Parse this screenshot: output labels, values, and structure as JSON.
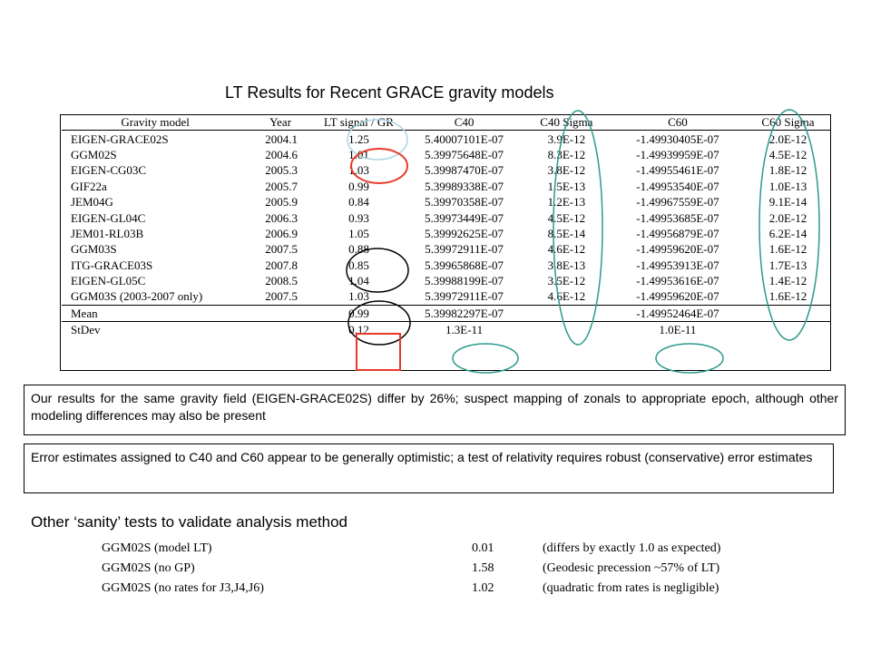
{
  "title": "LT Results for Recent GRACE gravity models",
  "table": {
    "headers": [
      "Gravity model",
      "Year",
      "LT signal / GR",
      "C40",
      "C40 Sigma",
      "C60",
      "C60 Sigma"
    ],
    "rows": [
      [
        "EIGEN-GRACE02S",
        "2004.1",
        "1.25",
        "5.40007101E-07",
        "3.9E-12",
        "-1.49930405E-07",
        "2.0E-12"
      ],
      [
        "GGM02S",
        "2004.6",
        "1.01",
        "5.39975648E-07",
        "8.3E-12",
        "-1.49939959E-07",
        "4.5E-12"
      ],
      [
        "EIGEN-CG03C",
        "2005.3",
        "1.03",
        "5.39987470E-07",
        "3.8E-12",
        "-1.49955461E-07",
        "1.8E-12"
      ],
      [
        "GIF22a",
        "2005.7",
        "0.99",
        "5.39989338E-07",
        "1.5E-13",
        "-1.49953540E-07",
        "1.0E-13"
      ],
      [
        "JEM04G",
        "2005.9",
        "0.84",
        "5.39970358E-07",
        "1.2E-13",
        "-1.49967559E-07",
        "9.1E-14"
      ],
      [
        "EIGEN-GL04C",
        "2006.3",
        "0.93",
        "5.39973449E-07",
        "4.5E-12",
        "-1.49953685E-07",
        "2.0E-12"
      ],
      [
        "JEM01-RL03B",
        "2006.9",
        "1.05",
        "5.39992625E-07",
        "8.5E-14",
        "-1.49956879E-07",
        "6.2E-14"
      ],
      [
        "GGM03S",
        "2007.5",
        "0.88",
        "5.39972911E-07",
        "4.6E-12",
        "-1.49959620E-07",
        "1.6E-12"
      ],
      [
        "ITG-GRACE03S",
        "2007.8",
        "0.85",
        "5.39965868E-07",
        "3.8E-13",
        "-1.49953913E-07",
        "1.7E-13"
      ],
      [
        "EIGEN-GL05C",
        "2008.5",
        "1.04",
        "5.39988199E-07",
        "3.5E-12",
        "-1.49953616E-07",
        "1.4E-12"
      ],
      [
        "GGM03S (2003-2007 only)",
        "2007.5",
        "1.03",
        "5.39972911E-07",
        "4.6E-12",
        "-1.49959620E-07",
        "1.6E-12"
      ]
    ],
    "mean": {
      "label": "Mean",
      "lt": "0.99",
      "c40": "5.39982297E-07",
      "c60": "-1.49952464E-07"
    },
    "stdev": {
      "label": "StDev",
      "lt": "0.12",
      "c40": "1.3E-11",
      "c60": "1.0E-11"
    }
  },
  "note1": "Our results for the same gravity field (EIGEN-GRACE02S) differ by 26%; suspect mapping of zonals to appropriate epoch, although other modeling differences may also be present",
  "note2": "Error estimates assigned to C40 and C60 appear to be generally optimistic; a test of relativity requires robust (conservative) error estimates",
  "sanity": {
    "title": "Other ‘sanity’ tests to validate analysis method",
    "rows": [
      [
        "GGM02S (model LT)",
        "0.01",
        "(differs by exactly 1.0 as expected)"
      ],
      [
        "GGM02S (no GP)",
        "1.58",
        "(Geodesic precession ~57% of LT)"
      ],
      [
        "GGM02S (no rates for J3,J4,J6)",
        "1.02",
        "(quadratic from rates is negligible)"
      ]
    ]
  },
  "colors": {
    "teal": "#2a9a8c",
    "red": "#e8392a",
    "light_blue": "#a8d8e0",
    "black": "#000000"
  }
}
